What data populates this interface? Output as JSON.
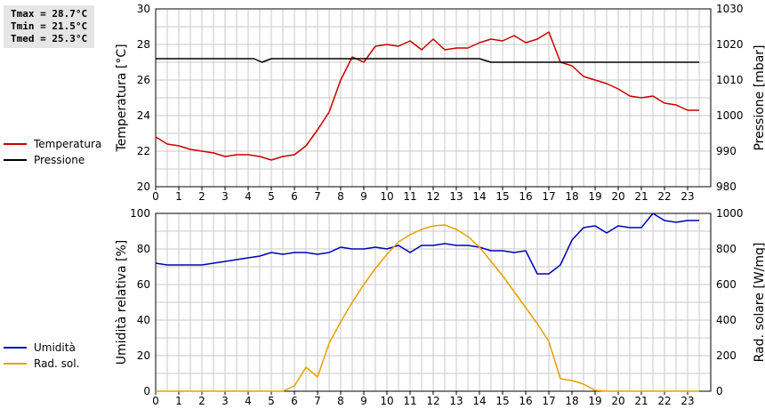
{
  "stats": {
    "tmax": "Tmax = 28.7°C",
    "tmin": "Tmin = 21.5°C",
    "tmed": "Tmed = 25.3°C"
  },
  "colors": {
    "temperature": "#cc0000",
    "pressure": "#000000",
    "humidity": "#0000bb",
    "radiation": "#e8a000",
    "grid": "#c8c8c8"
  },
  "chart_data": [
    {
      "type": "line",
      "ylabel": "Temperatura [°C]",
      "y2label": "Pressione [mbar]",
      "xlim": [
        0,
        24
      ],
      "ylim": [
        20,
        30
      ],
      "y2lim": [
        980,
        1030
      ],
      "x_ticks": [
        "0",
        "1",
        "2",
        "3",
        "4",
        "5",
        "6",
        "7",
        "8",
        "9",
        "10",
        "11",
        "12",
        "13",
        "14",
        "15",
        "16",
        "17",
        "18",
        "19",
        "20",
        "21",
        "22",
        "23"
      ],
      "y_ticks": [
        "20",
        "22",
        "24",
        "26",
        "28",
        "30"
      ],
      "y2_ticks": [
        "980",
        "990",
        "1000",
        "1010",
        "1020",
        "1030"
      ],
      "grid": true,
      "legend": [
        "Temperatura",
        "Pressione"
      ],
      "series": [
        {
          "name": "Temperatura",
          "axis": "left",
          "x": [
            0,
            0.5,
            1,
            1.5,
            2,
            2.5,
            3,
            3.5,
            4,
            4.5,
            5,
            5.5,
            6,
            6.5,
            7,
            7.5,
            8,
            8.5,
            9,
            9.5,
            10,
            10.5,
            11,
            11.5,
            12,
            12.5,
            13,
            13.5,
            14,
            14.5,
            15,
            15.5,
            16,
            16.5,
            17,
            17.5,
            18,
            18.5,
            19,
            19.5,
            20,
            20.5,
            21,
            21.5,
            22,
            22.5,
            23,
            23.5
          ],
          "y": [
            22.8,
            22.4,
            22.3,
            22.1,
            22.0,
            21.9,
            21.7,
            21.8,
            21.8,
            21.7,
            21.5,
            21.7,
            21.8,
            22.3,
            23.2,
            24.2,
            26.0,
            27.3,
            27.0,
            27.9,
            28.0,
            27.9,
            28.2,
            27.7,
            28.3,
            27.7,
            27.8,
            27.8,
            28.1,
            28.3,
            28.2,
            28.5,
            28.1,
            28.3,
            28.7,
            27.0,
            26.8,
            26.2,
            26.0,
            25.8,
            25.5,
            25.1,
            25.0,
            25.1,
            24.7,
            24.6,
            24.3,
            24.3
          ]
        },
        {
          "name": "Pressione",
          "axis": "right",
          "x": [
            0,
            4.25,
            4.6,
            5,
            14,
            14.5,
            23.5
          ],
          "y": [
            1016,
            1016,
            1015,
            1016,
            1016,
            1015,
            1015
          ]
        }
      ]
    },
    {
      "type": "line",
      "ylabel": "Umidità relativa [%]",
      "y2label": "Rad. solare [W/mq]",
      "xlim": [
        0,
        24
      ],
      "ylim": [
        0,
        100
      ],
      "y2lim": [
        0,
        1000
      ],
      "x_ticks": [
        "0",
        "1",
        "2",
        "3",
        "4",
        "5",
        "6",
        "7",
        "8",
        "9",
        "10",
        "11",
        "12",
        "13",
        "14",
        "15",
        "16",
        "17",
        "18",
        "19",
        "20",
        "21",
        "22",
        "23"
      ],
      "y_ticks": [
        "0",
        "20",
        "40",
        "60",
        "80",
        "100"
      ],
      "y2_ticks": [
        "0",
        "200",
        "400",
        "600",
        "800",
        "1000"
      ],
      "grid": true,
      "legend": [
        "Umidità",
        "Rad. sol."
      ],
      "series": [
        {
          "name": "Umidità",
          "axis": "left",
          "x": [
            0,
            0.5,
            1,
            1.5,
            2,
            2.5,
            3,
            3.5,
            4,
            4.5,
            5,
            5.5,
            6,
            6.5,
            7,
            7.5,
            8,
            8.5,
            9,
            9.5,
            10,
            10.5,
            11,
            11.5,
            12,
            12.5,
            13,
            13.5,
            14,
            14.5,
            15,
            15.5,
            16,
            16.5,
            17,
            17.5,
            18,
            18.5,
            19,
            19.5,
            20,
            20.5,
            21,
            21.5,
            22,
            22.5,
            23,
            23.5
          ],
          "y": [
            72,
            71,
            71,
            71,
            71,
            72,
            73,
            74,
            75,
            76,
            78,
            77,
            78,
            78,
            77,
            78,
            81,
            80,
            80,
            81,
            80,
            82,
            78,
            82,
            82,
            83,
            82,
            82,
            81,
            79,
            79,
            78,
            79,
            66,
            66,
            71,
            85,
            92,
            93,
            89,
            93,
            92,
            92,
            100,
            96,
            95,
            96,
            96
          ]
        },
        {
          "name": "Rad. sol.",
          "axis": "right",
          "x": [
            0,
            0.5,
            1,
            1.5,
            2,
            2.5,
            3,
            3.5,
            4,
            4.5,
            5,
            5.5,
            6,
            6.5,
            7,
            7.5,
            8,
            8.5,
            9,
            9.5,
            10,
            10.5,
            11,
            11.5,
            12,
            12.5,
            13,
            13.5,
            14,
            14.5,
            15,
            15.5,
            16,
            16.5,
            17,
            17.5,
            18,
            18.5,
            19,
            19.5,
            20,
            20.5,
            21,
            21.5,
            22,
            22.5,
            23,
            23.5
          ],
          "y": [
            0,
            0,
            0,
            0,
            0,
            0,
            0,
            0,
            0,
            0,
            0,
            0,
            30,
            135,
            80,
            270,
            390,
            500,
            600,
            690,
            770,
            840,
            880,
            910,
            930,
            935,
            910,
            870,
            810,
            730,
            650,
            560,
            470,
            380,
            280,
            70,
            60,
            40,
            5,
            0,
            0,
            0,
            0,
            0,
            0,
            0,
            0,
            0
          ]
        }
      ]
    }
  ]
}
